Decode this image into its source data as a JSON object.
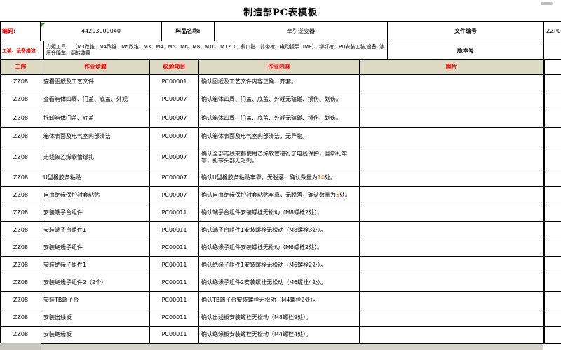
{
  "title": "制造部PC表模板",
  "info": {
    "code_label": "编码:",
    "code_value": "44203000040",
    "name_label": "料品名称:",
    "name_value": "牵引逆变器",
    "doc_label": "文件编号",
    "doc_value": "ZZP0",
    "version_label": "版本号",
    "equip_label": "工装、设备描述:",
    "equip_value": "力矩工具： （M3改锥、M4改锥、M5改锥、M3、M4、M5、M6、M8、M10、M12、）、斜口钳、扎带枪、电动扳手（M8）、铆钉枪、PU安装工装,设备: 液压升降车、翻转装置"
  },
  "table": {
    "headers": {
      "process": "工序",
      "step": "作业步骤",
      "item": "检验项目",
      "content": "作业内容",
      "picture": "图片"
    },
    "rows": [
      {
        "process": "ZZ08",
        "step": "查看图纸及工艺文件",
        "item": "PC00001",
        "pre": "确认图纸及工艺文件内容正确、齐套。",
        "hl": "",
        "post": ""
      },
      {
        "process": "ZZ08",
        "step": "查看箱体四周、门盖、底盖、外观",
        "item": "PC00007",
        "pre": "确认箱体四周、门盖、底盖、外观无磕碰、损伤、划伤。",
        "hl": "",
        "post": ""
      },
      {
        "process": "ZZ08",
        "step": "拆卸箱体门盖、底盖",
        "item": "PC00007",
        "pre": "确认箱体四周、门盖、底盖、外观无磕碰、损伤、划伤。",
        "hl": "",
        "post": ""
      },
      {
        "process": "ZZ08",
        "step": "箱体表面及电气室内部清洁",
        "item": "PC00007",
        "pre": "确认箱体表面及电气室内部清洁，无异物。",
        "hl": "",
        "post": ""
      },
      {
        "process": "ZZ08",
        "step": "走线架乙烯软管绑扎",
        "item": "PC00007",
        "pre": "确认全部走线架都使用乙烯软管进行了电线保护，且绑扎牢靠，扎带头部无毛刺。",
        "hl": "",
        "post": ""
      },
      {
        "process": "ZZ08",
        "step": "U型橡胶条粘贴",
        "item": "PC00007",
        "pre": "确认U型橡胶条粘贴牢靠，无脱落，确认数量为",
        "hl": "10",
        "post": "处。"
      },
      {
        "process": "ZZ08",
        "step": "自由绝缘保护衬套粘贴",
        "item": "PC00007",
        "pre": "确认自由绝缘保护衬套粘贴牢靠，无脱落，确认数量为",
        "hl": "5",
        "post": "处。"
      },
      {
        "process": "ZZ08",
        "step": "安装端子台组件",
        "item": "PC00011",
        "pre": "确认端子台组件安装螺栓无松动（M8螺栓2处）。",
        "hl": "",
        "post": ""
      },
      {
        "process": "ZZ08",
        "step": "安装端子台组件1",
        "item": "PC00011",
        "pre": "确认端子台组件1安装螺栓无松动（M8螺栓3处）。",
        "hl": "",
        "post": ""
      },
      {
        "process": "ZZ08",
        "step": "安装绝缘子组件",
        "item": "PC00011",
        "pre": "确认绝缘子组件安装螺栓无松动（M6螺栓2处）。",
        "hl": "",
        "post": ""
      },
      {
        "process": "ZZ08",
        "step": "安装绝缘子组件1",
        "item": "PC00011",
        "pre": "确认绝缘子组件1安装螺栓无松动（M6螺栓2处）。",
        "hl": "",
        "post": ""
      },
      {
        "process": "ZZ08",
        "step": "安装绝缘子组件2（2个）",
        "item": "PC00011",
        "pre": "确认绝缘子组件2安装螺栓无松动（M6螺栓4处）。",
        "hl": "",
        "post": ""
      },
      {
        "process": "ZZ08",
        "step": "安装TB端子台",
        "item": "PC00011",
        "pre": "确认TB端子台安装螺栓无松动（M4螺栓2处）。",
        "hl": "",
        "post": ""
      },
      {
        "process": "ZZ08",
        "step": "安装出线板",
        "item": "PC00011",
        "pre": "确认出线板安装螺栓无松动（M8螺栓9处）。",
        "hl": "",
        "post": ""
      },
      {
        "process": "ZZ08",
        "step": "安装绝缘板",
        "item": "PC00011",
        "pre": "确认绝缘板安装螺栓无松动（M4螺栓4处）。",
        "hl": "",
        "post": ""
      }
    ]
  },
  "colors": {
    "header_bg": "#ddd9c3",
    "label_red": "#ff0000",
    "highlight_orange": "#ff6600",
    "grid": "#000000"
  }
}
